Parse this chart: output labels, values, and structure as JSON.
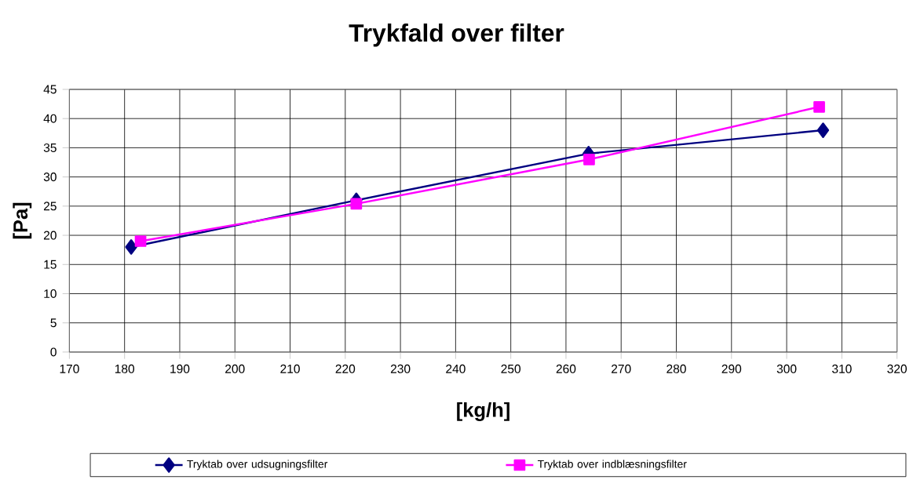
{
  "chart_data": {
    "type": "line",
    "title": "Trykfald over filter",
    "xlabel": "[kg/h]",
    "ylabel": "[Pa]",
    "xlim": [
      170,
      320
    ],
    "xticks": [
      170,
      180,
      190,
      200,
      210,
      220,
      230,
      240,
      250,
      260,
      270,
      280,
      290,
      300,
      310,
      320
    ],
    "ylim": [
      0,
      45
    ],
    "yticks": [
      0,
      5,
      10,
      15,
      20,
      25,
      30,
      35,
      40,
      45
    ],
    "grid": true,
    "legend": "bottom",
    "series": [
      {
        "name": "Tryktab over udsugningsfilter",
        "color": "#000080",
        "marker": "diamond",
        "x": [
          181.2,
          222.0,
          264.1,
          306.6
        ],
        "values": [
          18,
          26,
          34,
          38
        ]
      },
      {
        "name": "Tryktab over indblæsningsfilter",
        "color": "#ff00ff",
        "marker": "square",
        "x": [
          182.9,
          222.0,
          264.2,
          305.9
        ],
        "values": [
          19,
          25.4,
          33,
          42
        ]
      }
    ]
  }
}
